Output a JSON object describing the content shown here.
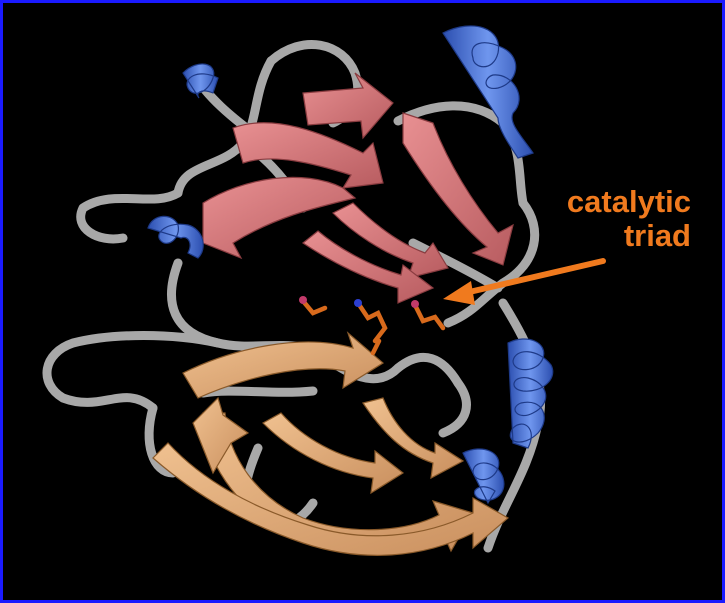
{
  "annotation": {
    "line1": "catalytic",
    "line2": "triad"
  },
  "colors": {
    "background": "#000000",
    "frame": "#1a1aff",
    "annotation": "#f07a1e",
    "coil": "#a8a8a8",
    "helix": "#4a74d8",
    "sheet_upper": "#d9797c",
    "sheet_lower": "#e6b07e",
    "triad_sticks": "#d86a1c"
  }
}
